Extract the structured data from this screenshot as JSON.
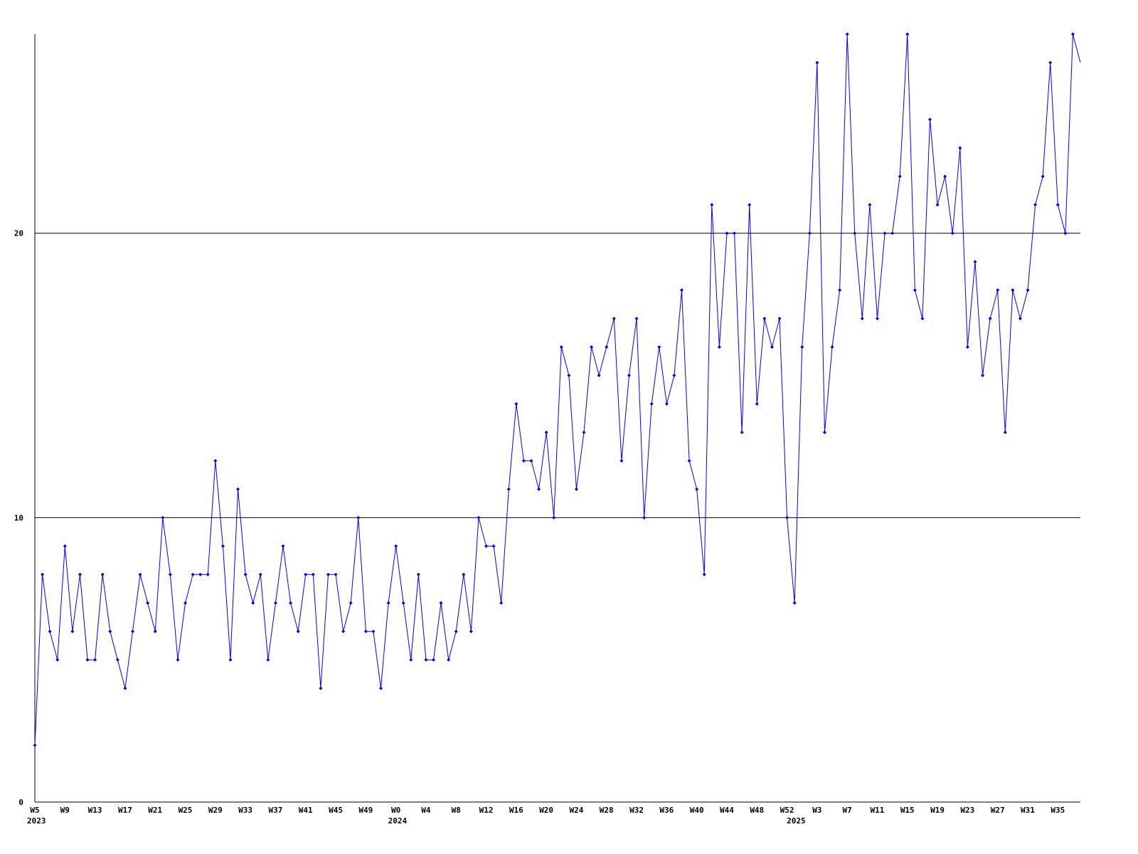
{
  "chart_data": {
    "type": "line",
    "color": "#0000ff",
    "grid_color": "#000000",
    "grid": true,
    "ylim": [
      0,
      27
    ],
    "yticks": [
      0,
      10,
      20
    ],
    "categories": [
      "W5",
      null,
      null,
      null,
      "W9",
      null,
      null,
      null,
      "W13",
      null,
      null,
      null,
      "W17",
      null,
      null,
      null,
      "W21",
      null,
      null,
      null,
      "W25",
      null,
      null,
      null,
      "W29",
      null,
      null,
      null,
      "W33",
      null,
      null,
      null,
      "W37",
      null,
      null,
      null,
      "W41",
      null,
      null,
      null,
      "W45",
      null,
      null,
      null,
      "W49",
      null,
      null,
      null,
      "W0",
      null,
      null,
      null,
      "W4",
      null,
      null,
      null,
      "W8",
      null,
      null,
      null,
      "W12",
      null,
      null,
      null,
      "W16",
      null,
      null,
      null,
      "W20",
      null,
      null,
      null,
      "W24",
      null,
      null,
      null,
      "W28",
      null,
      null,
      null,
      "W32",
      null,
      null,
      null,
      "W36",
      null,
      null,
      null,
      "W40",
      null,
      null,
      null,
      "W44",
      null,
      null,
      null,
      "W48",
      null,
      null,
      null,
      "W52",
      null,
      null,
      null,
      "W3",
      null,
      null,
      null,
      "W7",
      null,
      null,
      null,
      "W11",
      null,
      null,
      null,
      "W15",
      null,
      null,
      null,
      "W19",
      null,
      null,
      null,
      "W23",
      null,
      null,
      null,
      "W27",
      null,
      null,
      null,
      "W31",
      null,
      null,
      null,
      "W35",
      null,
      null,
      null
    ],
    "category_years": [
      "2023",
      null,
      null,
      null,
      null,
      null,
      null,
      null,
      null,
      null,
      null,
      null,
      null,
      null,
      null,
      null,
      null,
      null,
      null,
      null,
      null,
      null,
      null,
      null,
      null,
      null,
      null,
      null,
      null,
      null,
      null,
      null,
      null,
      null,
      null,
      null,
      null,
      null,
      null,
      null,
      null,
      null,
      null,
      null,
      null,
      null,
      null,
      null,
      "2024",
      null,
      null,
      null,
      null,
      null,
      null,
      null,
      null,
      null,
      null,
      null,
      null,
      null,
      null,
      null,
      null,
      null,
      null,
      null,
      null,
      null,
      null,
      null,
      null,
      null,
      null,
      null,
      null,
      null,
      null,
      null,
      null,
      null,
      null,
      null,
      null,
      null,
      null,
      null,
      null,
      null,
      null,
      null,
      null,
      null,
      null,
      null,
      null,
      null,
      null,
      null,
      null,
      "2025",
      null,
      null,
      null,
      null,
      null,
      null,
      null,
      null,
      null,
      null,
      null,
      null,
      null,
      null,
      null,
      null,
      null,
      null,
      null,
      null,
      null,
      null,
      null,
      null,
      null,
      null,
      null,
      null,
      null,
      null,
      null,
      null,
      null,
      null,
      null,
      null,
      null,
      null
    ],
    "values": [
      2,
      8,
      6,
      5,
      9,
      6,
      8,
      5,
      5,
      8,
      6,
      5,
      4,
      6,
      8,
      7,
      6,
      10,
      8,
      5,
      7,
      8,
      8,
      8,
      12,
      9,
      5,
      11,
      8,
      7,
      8,
      5,
      7,
      9,
      7,
      6,
      8,
      8,
      4,
      8,
      8,
      6,
      7,
      10,
      6,
      6,
      4,
      7,
      9,
      7,
      5,
      8,
      5,
      5,
      7,
      5,
      6,
      8,
      6,
      10,
      9,
      9,
      7,
      11,
      14,
      12,
      12,
      11,
      13,
      10,
      16,
      15,
      11,
      13,
      16,
      15,
      16,
      17,
      12,
      15,
      17,
      10,
      14,
      16,
      14,
      15,
      18,
      12,
      11,
      8,
      21,
      16,
      20,
      20,
      13,
      21,
      14,
      17,
      16,
      17,
      10,
      7,
      16,
      20,
      26,
      13,
      16,
      18,
      27,
      20,
      17,
      21,
      17,
      20,
      20,
      22,
      27,
      18,
      17,
      24,
      21,
      22,
      20,
      23,
      16,
      19,
      15,
      17,
      18,
      13,
      18,
      17,
      18,
      21,
      22,
      26,
      21,
      20,
      27,
      26
    ]
  }
}
